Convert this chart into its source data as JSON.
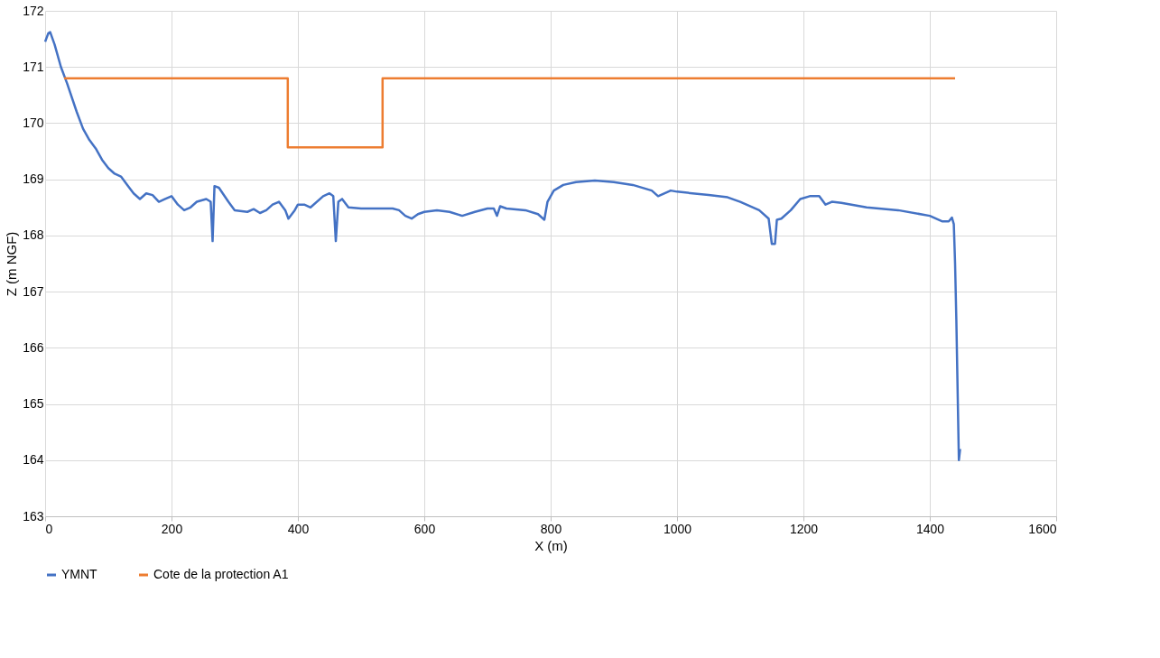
{
  "chart_data": {
    "type": "line",
    "xlabel": "X (m)",
    "ylabel": "Z (m NGF)",
    "xlim": [
      0,
      1600
    ],
    "xticks": [
      0,
      200,
      400,
      600,
      800,
      1000,
      1200,
      1400,
      1600
    ],
    "ylim": [
      163,
      172
    ],
    "yticks": [
      163,
      164,
      165,
      166,
      167,
      168,
      169,
      170,
      171,
      172
    ],
    "grid": true,
    "legend": "bottom",
    "marker": "none",
    "line_style": "solid",
    "series": [
      {
        "name": "YMNT",
        "color": "#4472c4",
        "x": [
          0,
          5,
          8,
          15,
          25,
          35,
          50,
          60,
          70,
          80,
          90,
          100,
          110,
          120,
          130,
          140,
          150,
          160,
          170,
          180,
          190,
          200,
          210,
          220,
          230,
          240,
          255,
          262,
          265,
          268,
          275,
          290,
          300,
          320,
          330,
          340,
          350,
          360,
          370,
          380,
          385,
          395,
          400,
          410,
          420,
          440,
          450,
          456,
          460,
          464,
          470,
          480,
          500,
          550,
          560,
          570,
          580,
          590,
          600,
          620,
          640,
          660,
          680,
          700,
          710,
          715,
          720,
          730,
          760,
          780,
          790,
          795,
          805,
          820,
          840,
          870,
          900,
          930,
          960,
          970,
          990,
          1000,
          1050,
          1080,
          1100,
          1130,
          1145,
          1150,
          1155,
          1158,
          1165,
          1180,
          1195,
          1210,
          1225,
          1235,
          1245,
          1260,
          1300,
          1350,
          1400,
          1420,
          1430,
          1435,
          1438,
          1440,
          1442,
          1446,
          1448
        ],
        "values": [
          171.45,
          171.6,
          171.62,
          171.4,
          171.0,
          170.7,
          170.2,
          169.9,
          169.7,
          169.55,
          169.35,
          169.2,
          169.1,
          169.05,
          168.9,
          168.75,
          168.65,
          168.75,
          168.72,
          168.6,
          168.65,
          168.7,
          168.55,
          168.45,
          168.5,
          168.6,
          168.65,
          168.6,
          167.9,
          168.88,
          168.85,
          168.6,
          168.45,
          168.42,
          168.47,
          168.4,
          168.45,
          168.55,
          168.6,
          168.45,
          168.3,
          168.45,
          168.55,
          168.55,
          168.5,
          168.7,
          168.75,
          168.7,
          167.9,
          168.6,
          168.65,
          168.5,
          168.48,
          168.48,
          168.45,
          168.35,
          168.3,
          168.38,
          168.42,
          168.45,
          168.42,
          168.35,
          168.42,
          168.48,
          168.48,
          168.35,
          168.52,
          168.48,
          168.45,
          168.38,
          168.28,
          168.6,
          168.8,
          168.9,
          168.95,
          168.98,
          168.95,
          168.9,
          168.8,
          168.7,
          168.8,
          168.78,
          168.72,
          168.68,
          168.6,
          168.45,
          168.3,
          167.85,
          167.85,
          168.28,
          168.3,
          168.45,
          168.65,
          168.7,
          168.7,
          168.55,
          168.6,
          168.58,
          168.5,
          168.45,
          168.35,
          168.25,
          168.25,
          168.32,
          168.2,
          167.5,
          166.5,
          164.0,
          164.2
        ]
      },
      {
        "name": "Cote de la protection A1",
        "color": "#ed7d31",
        "x": [
          30,
          384,
          384,
          534,
          534,
          1440
        ],
        "values": [
          170.8,
          170.8,
          169.57,
          169.57,
          170.8,
          170.8
        ]
      }
    ]
  }
}
